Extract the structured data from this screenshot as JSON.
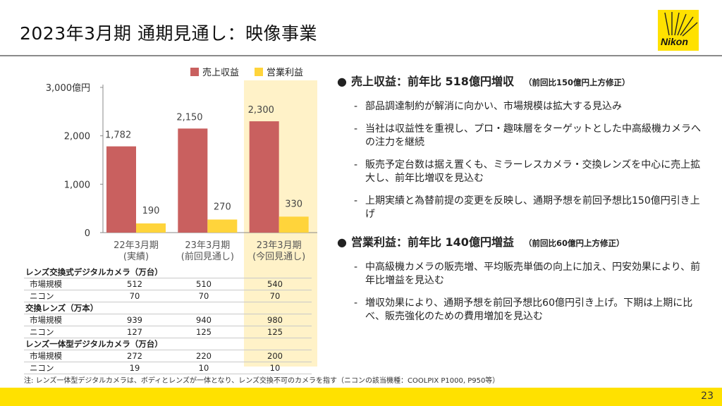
{
  "title": "2023年3月期 通期見通し：映像事業",
  "logo_text": "Nikon",
  "legend": {
    "revenue": "売上収益",
    "profit": "営業利益"
  },
  "chart_data": {
    "type": "bar",
    "categories": [
      [
        "22年3月期",
        "(実績)"
      ],
      [
        "23年3月期",
        "(前回見通し)"
      ],
      [
        "23年3月期",
        "(今回見通し)"
      ]
    ],
    "series": [
      {
        "name": "売上収益",
        "values": [
          1782,
          2150,
          2300
        ],
        "labels": [
          "1,782",
          "2,150",
          "2,300"
        ],
        "color": "#c9605f"
      },
      {
        "name": "営業利益",
        "values": [
          190,
          270,
          330
        ],
        "labels": [
          "190",
          "270",
          "330"
        ],
        "color": "#ffd43b"
      }
    ],
    "ylim": [
      0,
      3000
    ],
    "yticks": [
      {
        "v": 0,
        "l": "0"
      },
      {
        "v": 1000,
        "l": "1,000"
      },
      {
        "v": 2000,
        "l": "2,000"
      },
      {
        "v": 3000,
        "l": "3,000億円"
      }
    ],
    "highlight_category": 2
  },
  "table": [
    {
      "type": "head",
      "label": "レンズ交換式デジタルカメラ（万台）"
    },
    {
      "type": "row",
      "label": "市場規模",
      "values": [
        "512",
        "510",
        "540"
      ]
    },
    {
      "type": "row",
      "label": "ニコン",
      "values": [
        "70",
        "70",
        "70"
      ]
    },
    {
      "type": "head",
      "label": "交換レンズ（万本）"
    },
    {
      "type": "row",
      "label": "市場規模",
      "values": [
        "939",
        "940",
        "980"
      ]
    },
    {
      "type": "row",
      "label": "ニコン",
      "values": [
        "127",
        "125",
        "125"
      ]
    },
    {
      "type": "head",
      "label": "レンズ一体型デジタルカメラ（万台）"
    },
    {
      "type": "row",
      "label": "市場規模",
      "values": [
        "272",
        "220",
        "200"
      ]
    },
    {
      "type": "row",
      "label": "ニコン",
      "values": [
        "19",
        "10",
        "10"
      ]
    }
  ],
  "sections": [
    {
      "bullet": "●",
      "heading": "売上収益：前年比 518億円増収",
      "note": "（前回比150億円上方修正）",
      "items": [
        "部品調達制約が解消に向かい、市場規模は拡大する見込み",
        "当社は収益性を重視し、プロ・趣味層をターゲットとした中高級機カメラへの注力を継続",
        "販売予定台数は据え置くも、ミラーレスカメラ・交換レンズを中心に売上拡大し、前年比増収を見込む",
        "上期実績と為替前提の変更を反映し、通期予想を前回予想比150億円引き上げ"
      ]
    },
    {
      "bullet": "●",
      "heading": "営業利益：前年比 140億円増益",
      "note": "（前回比60億円上方修正）",
      "items": [
        "中高級機カメラの販売増、平均販売単価の向上に加え、円安効果により、前年比増益を見込む",
        "増収効果により、通期予想を前回予想比60億円引き上げ。下期は上期に比べ、販売強化のための費用増加を見込む"
      ]
    }
  ],
  "footnote": "注: レンズ一体型デジタルカメラは、ボディとレンズが一体となり、レンズ交換不可のカメラを指す（ニコンの該当機種：COOLPIX P1000, P950等）",
  "page_number": "23"
}
